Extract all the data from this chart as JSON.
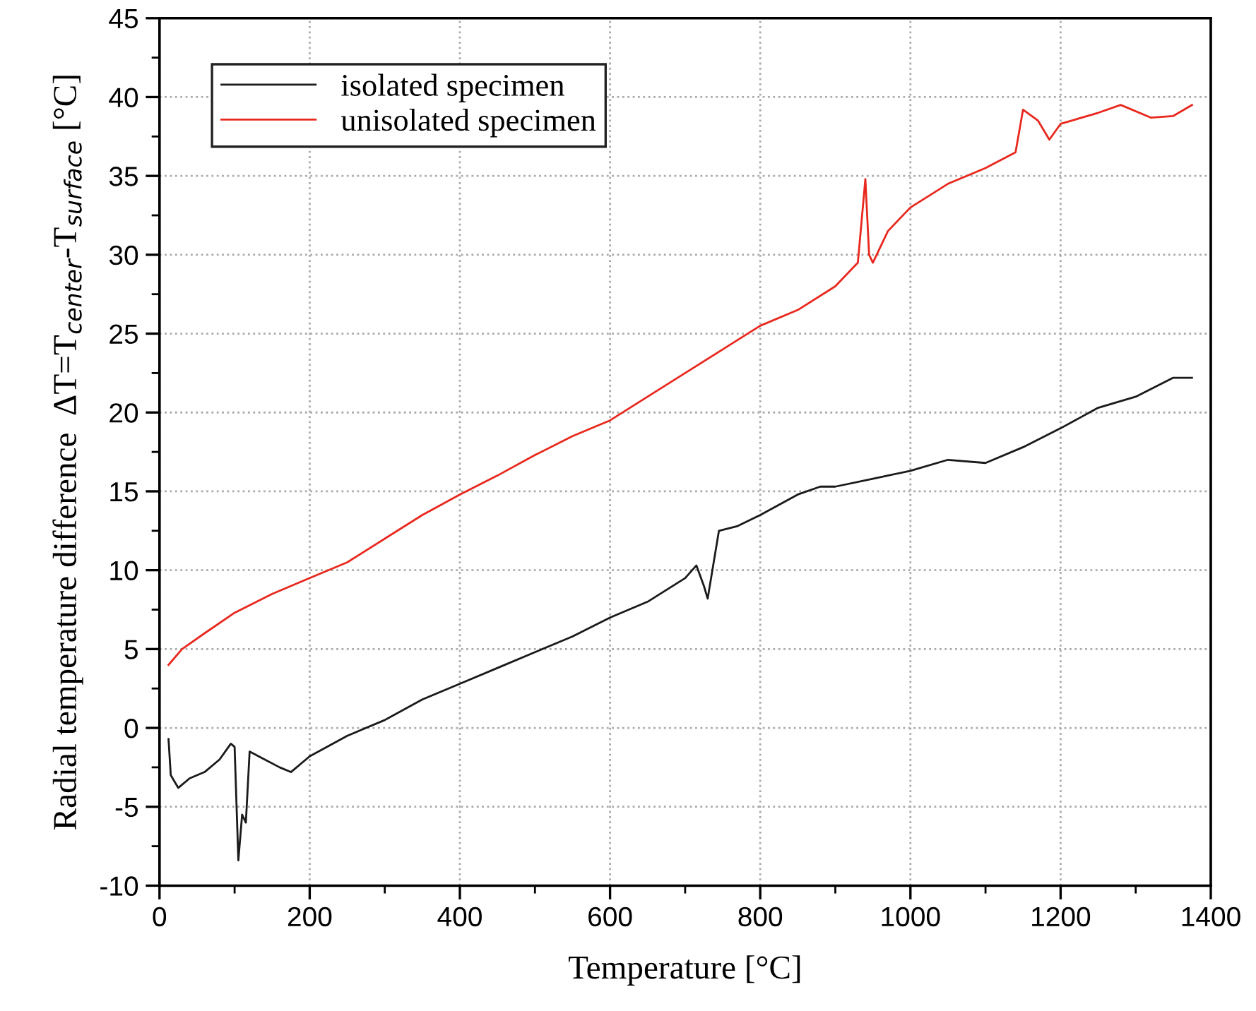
{
  "chart_data": {
    "type": "line",
    "xlabel": "Temperature [°C]",
    "ylabel": "Radial temperature difference  ΔT=T$_{center}$-T$_{surface}$ [°C]",
    "xlim": [
      0,
      1400
    ],
    "ylim": [
      -10,
      45
    ],
    "xticks": [
      0,
      {
        "value": 100,
        "label": null
      },
      200,
      {
        "value": 300,
        "label": null
      },
      400,
      {
        "value": 500,
        "label": null
      },
      600,
      {
        "value": 700,
        "label": null
      },
      800,
      {
        "value": 900,
        "label": null
      },
      1000,
      {
        "value": 1100,
        "label": null
      },
      1200,
      {
        "value": 1300,
        "label": null
      },
      1400
    ],
    "yticks": [
      -10,
      {
        "value": -7.5,
        "label": null
      },
      -5,
      {
        "value": -2.5,
        "label": null
      },
      0,
      {
        "value": 2.5,
        "label": null
      },
      5,
      {
        "value": 7.5,
        "label": null
      },
      10,
      {
        "value": 12.5,
        "label": null
      },
      15,
      {
        "value": 17.5,
        "label": null
      },
      20,
      {
        "value": 22.5,
        "label": null
      },
      25,
      {
        "value": 27.5,
        "label": null
      },
      30,
      {
        "value": 32.5,
        "label": null
      },
      35,
      {
        "value": 37.5,
        "label": null
      },
      40,
      {
        "value": 42.5,
        "label": null
      },
      45
    ],
    "grid": true,
    "legend": "top left",
    "marker": "none",
    "line_style": "solid",
    "series": [
      {
        "name": "isolated specimen",
        "color": "#1a1a1a",
        "x": [
          12,
          15,
          25,
          40,
          60,
          80,
          95,
          100,
          105,
          110,
          115,
          120,
          140,
          160,
          175,
          200,
          250,
          300,
          350,
          400,
          450,
          500,
          550,
          600,
          650,
          700,
          715,
          725,
          730,
          745,
          770,
          800,
          850,
          880,
          900,
          950,
          1000,
          1050,
          1100,
          1150,
          1200,
          1250,
          1300,
          1350,
          1375
        ],
        "values": [
          -0.7,
          -3.0,
          -3.8,
          -3.2,
          -2.8,
          -2.0,
          -1.0,
          -1.2,
          -8.4,
          -5.5,
          -6.0,
          -1.5,
          -2.0,
          -2.5,
          -2.8,
          -1.8,
          -0.5,
          0.5,
          1.8,
          2.8,
          3.8,
          4.8,
          5.8,
          7.0,
          8.0,
          9.5,
          10.3,
          9.0,
          8.2,
          12.5,
          12.8,
          13.5,
          14.8,
          15.3,
          15.3,
          15.8,
          16.3,
          17.0,
          16.8,
          17.8,
          19.0,
          20.3,
          21.0,
          22.2,
          22.2
        ]
      },
      {
        "name": "unisolated specimen",
        "color": "#e8281e",
        "x": [
          12,
          30,
          60,
          100,
          150,
          200,
          250,
          300,
          350,
          400,
          450,
          500,
          550,
          600,
          650,
          700,
          750,
          800,
          850,
          900,
          930,
          940,
          945,
          950,
          970,
          1000,
          1050,
          1100,
          1140,
          1150,
          1170,
          1185,
          1200,
          1250,
          1280,
          1320,
          1350,
          1375
        ],
        "values": [
          4.0,
          5.0,
          6.0,
          7.3,
          8.5,
          9.5,
          10.5,
          12.0,
          13.5,
          14.8,
          16.0,
          17.3,
          18.5,
          19.5,
          21.0,
          22.5,
          24.0,
          25.5,
          26.5,
          28.0,
          29.5,
          34.8,
          30.0,
          29.5,
          31.5,
          33.0,
          34.5,
          35.5,
          36.5,
          39.2,
          38.5,
          37.3,
          38.3,
          39.0,
          39.5,
          38.7,
          38.8,
          39.5
        ]
      }
    ]
  }
}
